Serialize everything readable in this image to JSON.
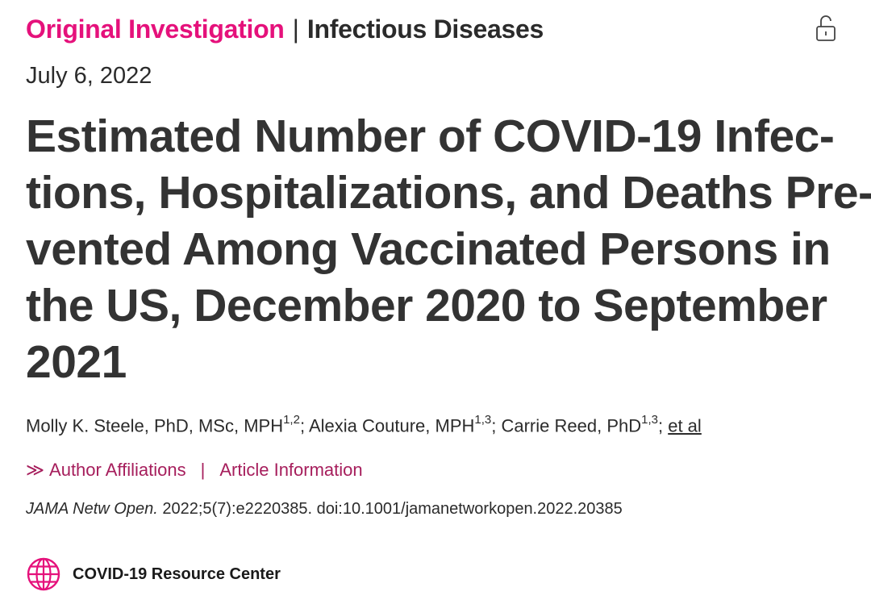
{
  "header": {
    "section_type": "Original Investigation",
    "separator": "|",
    "section_topic": "Infectious Diseases",
    "lock_icon": "unlock-icon",
    "accent_color": "#e5117b"
  },
  "article": {
    "date": "July 6, 2022",
    "title_lines": [
      "Estimated Number of COVID-19 Infec-",
      "tions, Hospitalizations, and Deaths Pre-",
      "vented Among Vaccinated Persons in",
      "the US, December 2020 to September",
      "2021"
    ]
  },
  "authors": [
    {
      "name": "Molly K. Steele, PhD, MSc, MPH",
      "sup": "1,2",
      "after": "; "
    },
    {
      "name": "Alexia Couture, MPH",
      "sup": "1,3",
      "after": "; "
    },
    {
      "name": "Carrie Reed, PhD",
      "sup": "1,3",
      "after": "; "
    }
  ],
  "authors_more": "et al",
  "links": {
    "chevron": "≫",
    "affiliations": "Author Affiliations",
    "pipe": "|",
    "article_info": "Article Information",
    "color": "#a61e5c"
  },
  "citation": {
    "journal": "JAMA Netw Open.",
    "rest": " 2022;5(7):e2220385. doi:10.1001/jamanetworkopen.2022.20385"
  },
  "resource": {
    "icon": "globe-icon",
    "label": "COVID-19 Resource Center"
  }
}
